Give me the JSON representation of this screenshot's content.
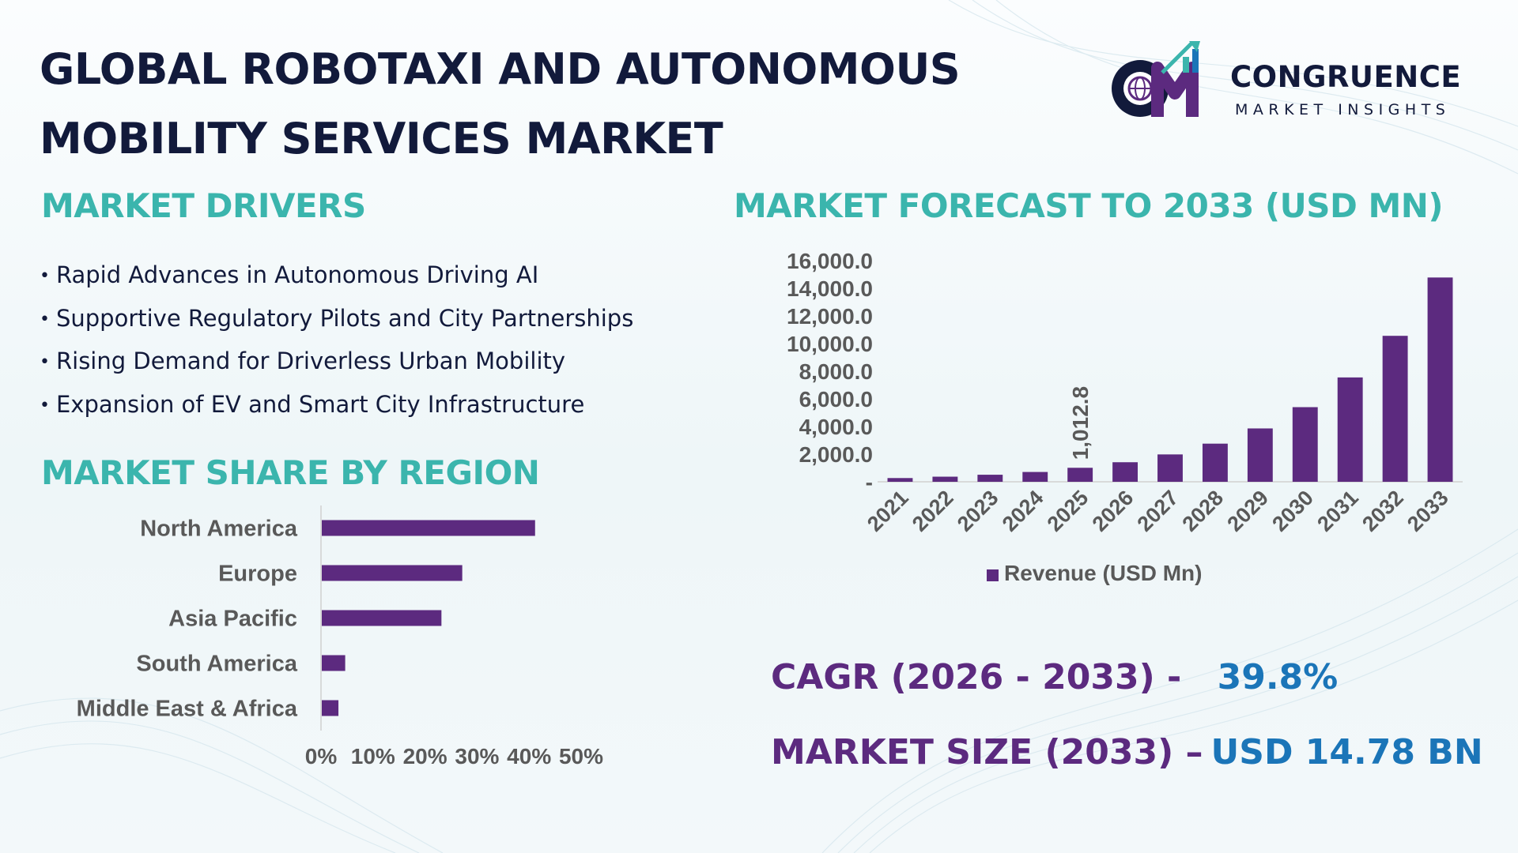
{
  "title_line1": "GLOBAL ROBOTAXI AND AUTONOMOUS",
  "title_line2": "MOBILITY SERVICES MARKET",
  "logo": {
    "name": "CONGRUENCE",
    "subtitle": "MARKET INSIGHTS",
    "mark_letters": "CM",
    "icon": "globe-arrow-chart-icon"
  },
  "drivers": {
    "heading": "MARKET DRIVERS",
    "items": [
      "Rapid Advances in Autonomous Driving AI",
      "Supportive Regulatory Pilots and City Partnerships",
      "Rising Demand for Driverless Urban Mobility",
      "Expansion of EV and Smart City Infrastructure"
    ]
  },
  "forecast_heading": "MARKET FORECAST TO 2033 (USD MN)",
  "region_heading": "MARKET SHARE BY REGION",
  "stats": {
    "cagr_label": "CAGR (2026 - 2033) -",
    "cagr_value": "39.8%",
    "size_label": "MARKET SIZE (2033) –",
    "size_value": "USD 14.78 BN"
  },
  "colors": {
    "bar": "#5c2a7f",
    "heading": "#3bb5ad",
    "title": "#121a3b",
    "stat_label": "#5c2a7f",
    "stat_value": "#1b75b8"
  },
  "chart_data": [
    {
      "type": "bar",
      "orientation": "vertical",
      "categories": [
        "2021",
        "2022",
        "2023",
        "2024",
        "2025",
        "2026",
        "2027",
        "2028",
        "2029",
        "2030",
        "2031",
        "2032",
        "2033"
      ],
      "series": [
        {
          "name": "Revenue (USD Mn)",
          "values": [
            270,
            370,
            510,
            710,
            1012.8,
            1415,
            1980,
            2760,
            3860,
            5400,
            7550,
            10560,
            14780
          ]
        }
      ],
      "y_ticks": [
        "-",
        "2,000.0",
        "4,000.0",
        "6,000.0",
        "8,000.0",
        "10,000.0",
        "12,000.0",
        "14,000.0",
        "16,000.0"
      ],
      "ylim": [
        0,
        16000
      ],
      "data_labels": [
        {
          "category": "2025",
          "text": "1,012.8"
        }
      ],
      "legend": "bottom",
      "grid": false
    },
    {
      "type": "bar",
      "orientation": "horizontal",
      "categories": [
        "North America",
        "Europe",
        "Asia Pacific",
        "South America",
        "Middle East & Africa"
      ],
      "values": [
        41,
        27,
        23,
        4.5,
        3.2
      ],
      "x_ticks": [
        "0%",
        "10%",
        "20%",
        "30%",
        "40%",
        "50%"
      ],
      "xlim": [
        0,
        50
      ],
      "grid": false
    }
  ]
}
